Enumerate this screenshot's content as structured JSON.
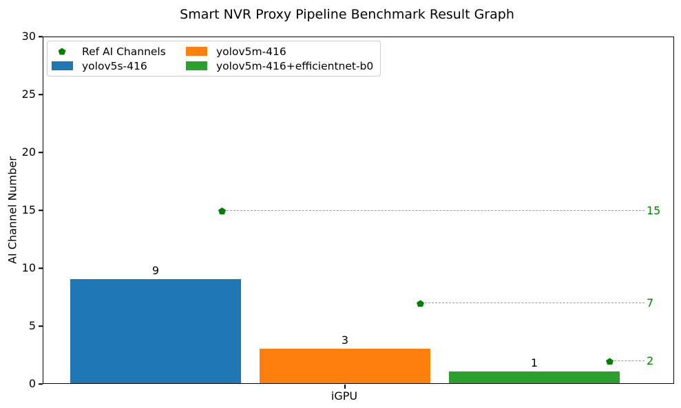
{
  "chart_data": {
    "type": "bar",
    "title": "Smart NVR Proxy Pipeline Benchmark Result Graph",
    "ylabel": "AI Channel Number",
    "xlabel": "",
    "categories": [
      "iGPU"
    ],
    "series": [
      {
        "name": "yolov5s-416",
        "color": "#1f77b4",
        "values": [
          9
        ]
      },
      {
        "name": "yolov5m-416",
        "color": "#ff7f0e",
        "values": [
          3
        ]
      },
      {
        "name": "yolov5m-416+efficientnet-b0",
        "color": "#2ca02c",
        "values": [
          1
        ]
      }
    ],
    "ref_markers": {
      "name": "Ref AI Channels",
      "marker": "pentagon",
      "color": "#008000",
      "line_style": "dashed",
      "line_color": "#999999",
      "values": [
        15,
        7,
        2
      ]
    },
    "bar_value_labels": [
      "9",
      "3",
      "1"
    ],
    "ref_value_labels": [
      "15",
      "7",
      "2"
    ],
    "ylim": [
      0,
      30
    ],
    "yticks": [
      0,
      5,
      10,
      15,
      20,
      25,
      30
    ],
    "grid": false,
    "legend_position": "upper left",
    "legend": [
      {
        "label": "Ref AI Channels",
        "swatch": "pentagon",
        "color": "#008000"
      },
      {
        "label": "yolov5s-416",
        "swatch": "patch",
        "color": "#1f77b4"
      },
      {
        "label": "yolov5m-416",
        "swatch": "patch",
        "color": "#ff7f0e"
      },
      {
        "label": "yolov5m-416+efficientnet-b0",
        "swatch": "patch",
        "color": "#2ca02c"
      }
    ],
    "spine_color": "#000000",
    "background": "#ffffff"
  }
}
